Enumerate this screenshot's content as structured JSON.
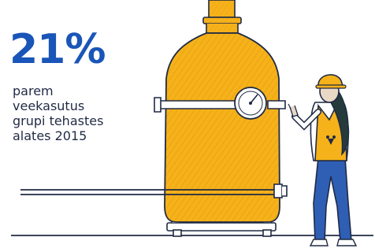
{
  "stat": {
    "value": "21%",
    "caption": "parem\nveekasutus\ngrupi tehastes\nalates 2015"
  },
  "colors": {
    "accent": "#1a55b8",
    "tank": "#f6b21a",
    "outline": "#1f2a44",
    "pants": "#2f5fb5",
    "skin": "#e9d8c6",
    "hair": "#253b3b"
  },
  "icons": {
    "gauge": "pressure-gauge-icon",
    "badge": "vest-logo-icon"
  }
}
